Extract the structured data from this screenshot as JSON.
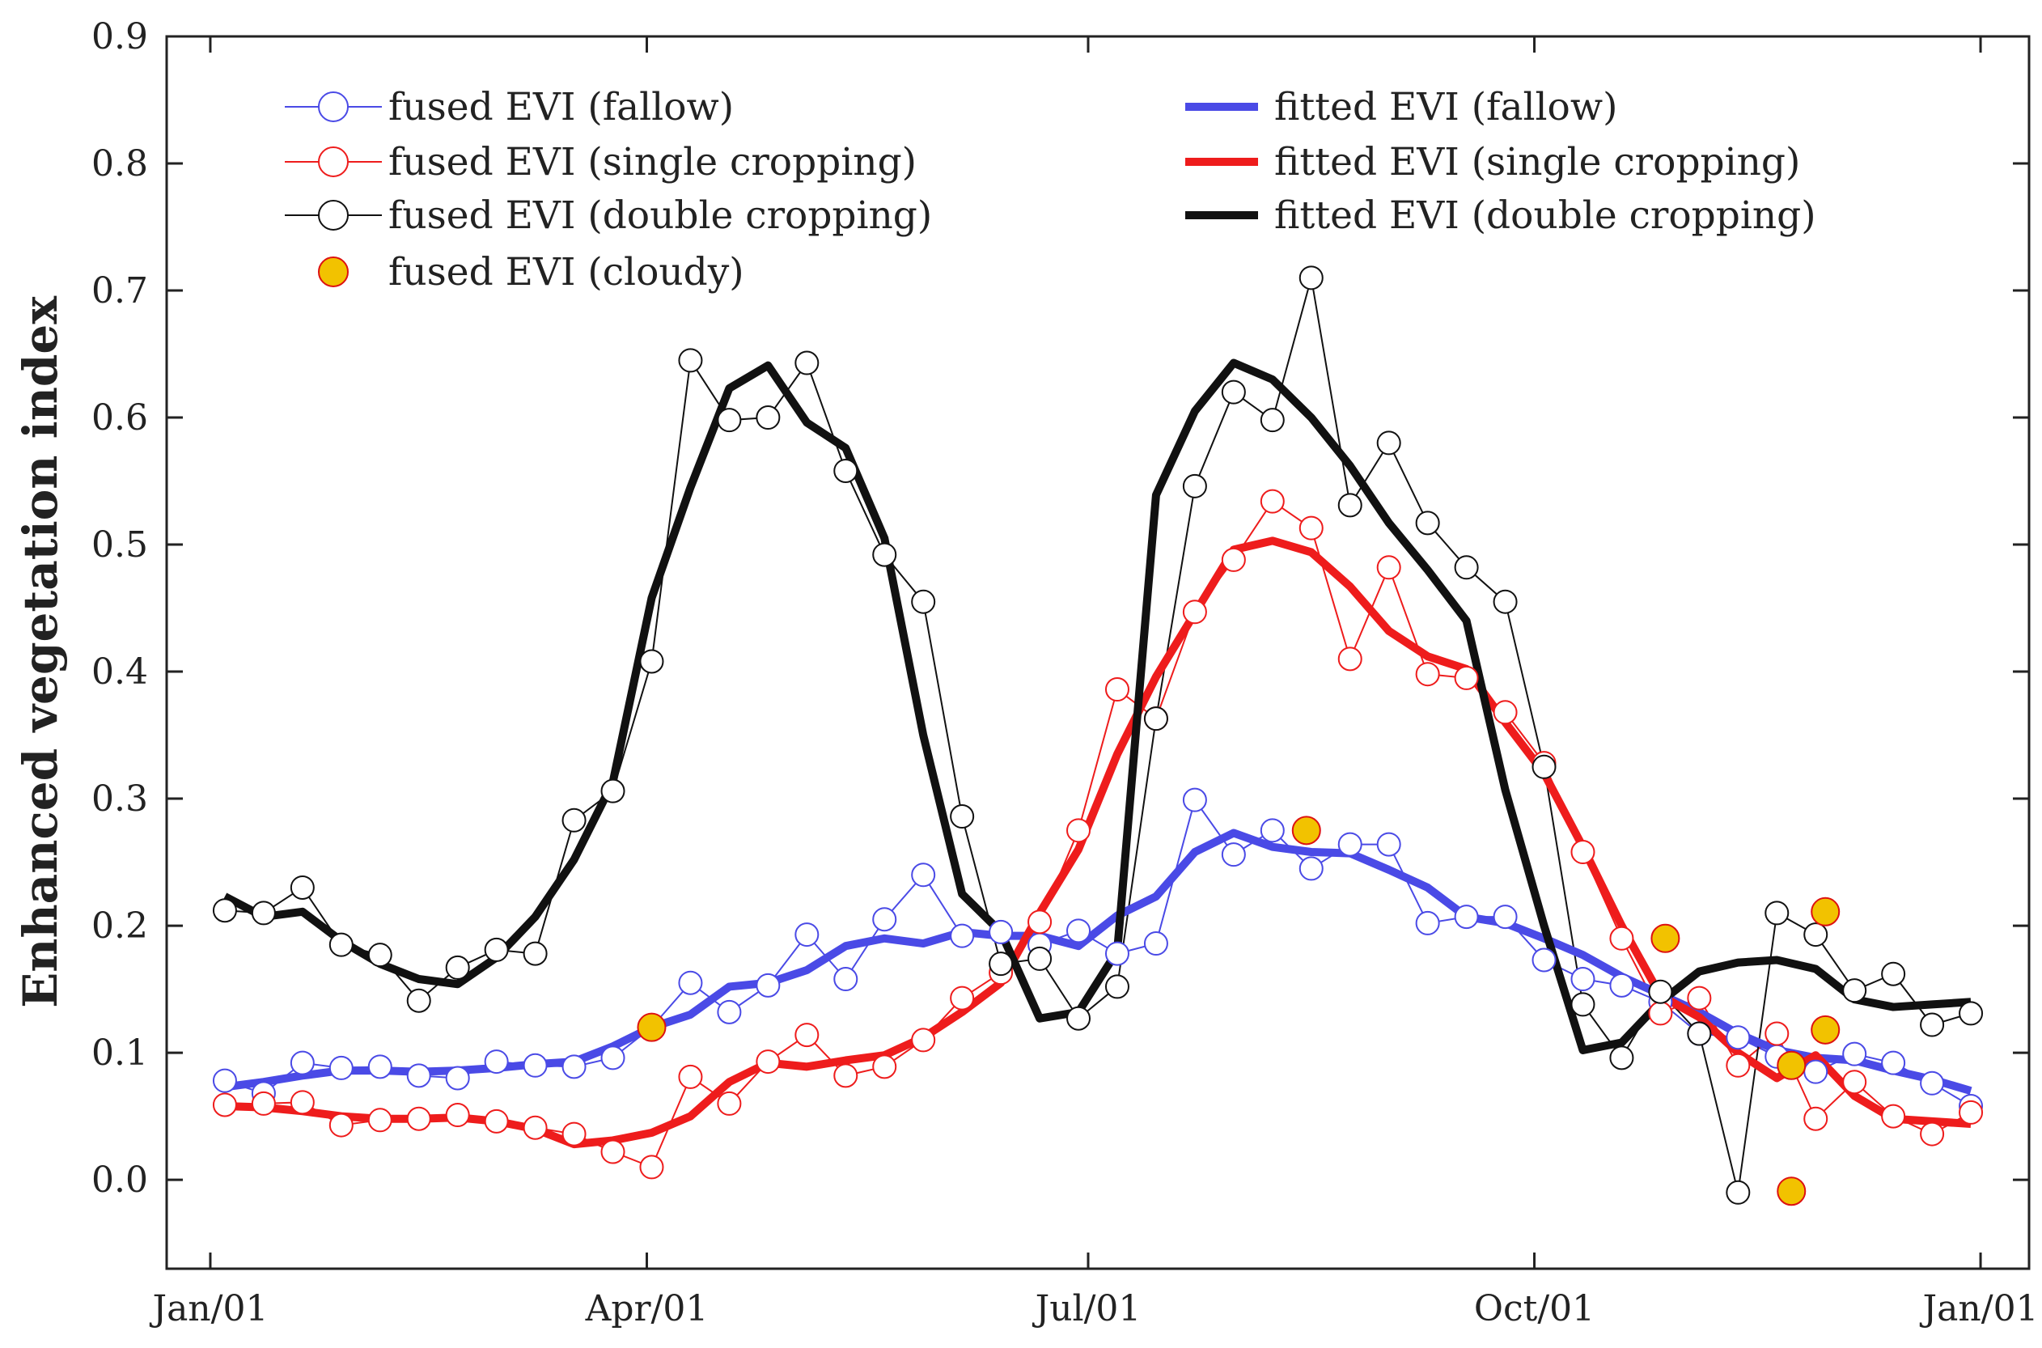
{
  "chart_data": {
    "type": "line",
    "title": "",
    "xlabel": "",
    "ylabel": "Enhanced vegetation index",
    "xlim": [
      -9,
      375
    ],
    "ylim": [
      -0.07,
      0.9
    ],
    "grid": false,
    "legend_placement": "top",
    "xticks": [
      {
        "day": 0,
        "label": "Jan/01"
      },
      {
        "day": 90,
        "label": "Apr/01"
      },
      {
        "day": 181,
        "label": "Jul/01"
      },
      {
        "day": 273,
        "label": "Oct/01"
      },
      {
        "day": 365,
        "label": "Jan/01"
      }
    ],
    "yticks": [
      {
        "value": 0.0,
        "label": "0.0"
      },
      {
        "value": 0.1,
        "label": "0.1"
      },
      {
        "value": 0.2,
        "label": "0.2"
      },
      {
        "value": 0.3,
        "label": "0.3"
      },
      {
        "value": 0.4,
        "label": "0.4"
      },
      {
        "value": 0.5,
        "label": "0.5"
      },
      {
        "value": 0.6,
        "label": "0.6"
      },
      {
        "value": 0.7,
        "label": "0.7"
      },
      {
        "value": 0.8,
        "label": "0.8"
      },
      {
        "value": 0.9,
        "label": "0.9"
      }
    ],
    "colors": {
      "fallow": "#4a4ae6",
      "single": "#ee1c1c",
      "double": "#111111",
      "cloudy_fill": "#f2c200",
      "cloudy_edge": "#dd1111"
    },
    "x": [
      3,
      11,
      19,
      27,
      35,
      43,
      51,
      59,
      67,
      75,
      83,
      91,
      99,
      107,
      115,
      123,
      131,
      139,
      147,
      155,
      163,
      171,
      179,
      187,
      195,
      203,
      211,
      219,
      227,
      235,
      243,
      251,
      259,
      267,
      275,
      283,
      291,
      299,
      307,
      315,
      323,
      331,
      339,
      347,
      355,
      363
    ],
    "series": [
      {
        "name": "fused EVI (fallow)",
        "kind": "observed",
        "color_key": "fallow",
        "values": [
          0.078,
          0.068,
          0.092,
          0.088,
          0.089,
          0.082,
          0.08,
          0.093,
          0.09,
          0.089,
          0.096,
          0.12,
          0.155,
          0.132,
          0.153,
          0.193,
          0.158,
          0.205,
          0.24,
          0.192,
          0.195,
          0.185,
          0.196,
          0.178,
          0.186,
          0.299,
          0.256,
          0.275,
          0.245,
          0.264,
          0.264,
          0.202,
          0.207,
          0.207,
          0.173,
          0.158,
          0.153,
          0.14,
          0.115,
          0.112,
          0.097,
          0.085,
          0.099,
          0.092,
          0.076,
          0.058
        ]
      },
      {
        "name": "fused EVI (single cropping)",
        "kind": "observed",
        "color_key": "single",
        "values": [
          0.059,
          0.06,
          0.061,
          0.043,
          0.047,
          0.048,
          0.051,
          0.046,
          0.041,
          0.036,
          0.022,
          0.01,
          0.081,
          0.06,
          0.093,
          0.114,
          0.082,
          0.089,
          0.11,
          0.143,
          0.163,
          0.203,
          0.275,
          0.386,
          0.363,
          0.447,
          0.488,
          0.534,
          0.513,
          0.41,
          0.482,
          0.398,
          0.395,
          0.368,
          0.328,
          0.258,
          0.19,
          0.131,
          0.143,
          0.09,
          0.115,
          0.048,
          0.077,
          0.05,
          0.036,
          0.053
        ]
      },
      {
        "name": "fused EVI (double cropping)",
        "kind": "observed",
        "color_key": "double",
        "values": [
          0.212,
          0.21,
          0.23,
          0.185,
          0.177,
          0.141,
          0.167,
          0.181,
          0.178,
          0.283,
          0.306,
          0.408,
          0.645,
          0.598,
          0.6,
          0.643,
          0.558,
          0.492,
          0.455,
          0.286,
          0.17,
          0.174,
          0.127,
          0.152,
          0.363,
          0.546,
          0.62,
          0.598,
          0.71,
          0.531,
          0.58,
          0.517,
          0.482,
          0.455,
          0.325,
          0.138,
          0.096,
          0.148,
          0.115,
          -0.01,
          0.21,
          0.193,
          0.149,
          0.162,
          0.122,
          0.131
        ]
      },
      {
        "name": "fused EVI (cloudy)",
        "kind": "cloudy",
        "points": [
          [
            91,
            0.12
          ],
          [
            226,
            0.275
          ],
          [
            300,
            0.19
          ],
          [
            326,
            0.09
          ],
          [
            326,
            -0.009
          ],
          [
            333,
            0.118
          ],
          [
            333,
            0.211
          ]
        ]
      },
      {
        "name": "fitted EVI (fallow)",
        "kind": "fitted",
        "color_key": "fallow",
        "values": [
          0.073,
          0.077,
          0.082,
          0.086,
          0.086,
          0.085,
          0.086,
          0.088,
          0.091,
          0.093,
          0.105,
          0.12,
          0.13,
          0.152,
          0.155,
          0.165,
          0.184,
          0.19,
          0.186,
          0.195,
          0.192,
          0.192,
          0.184,
          0.208,
          0.223,
          0.258,
          0.273,
          0.262,
          0.258,
          0.257,
          0.244,
          0.23,
          0.207,
          0.202,
          0.19,
          0.177,
          0.16,
          0.146,
          0.132,
          0.115,
          0.102,
          0.096,
          0.094,
          0.086,
          0.079,
          0.07
        ]
      },
      {
        "name": "fitted EVI (single cropping)",
        "kind": "fitted",
        "color_key": "single",
        "values": [
          0.058,
          0.057,
          0.054,
          0.05,
          0.048,
          0.048,
          0.049,
          0.046,
          0.04,
          0.028,
          0.031,
          0.037,
          0.05,
          0.077,
          0.092,
          0.089,
          0.094,
          0.098,
          0.112,
          0.132,
          0.155,
          0.21,
          0.26,
          0.335,
          0.396,
          0.446,
          0.496,
          0.503,
          0.494,
          0.467,
          0.432,
          0.412,
          0.402,
          0.36,
          0.32,
          0.262,
          0.2,
          0.145,
          0.128,
          0.1,
          0.08,
          0.098,
          0.066,
          0.048,
          0.046,
          0.044
        ]
      },
      {
        "name": "fitted EVI (double cropping)",
        "kind": "fitted",
        "color_key": "double",
        "values": [
          0.223,
          0.207,
          0.211,
          0.188,
          0.17,
          0.158,
          0.154,
          0.175,
          0.207,
          0.252,
          0.313,
          0.458,
          0.545,
          0.623,
          0.641,
          0.596,
          0.576,
          0.505,
          0.35,
          0.225,
          0.195,
          0.127,
          0.132,
          0.18,
          0.539,
          0.605,
          0.643,
          0.63,
          0.6,
          0.562,
          0.517,
          0.48,
          0.44,
          0.307,
          0.2,
          0.102,
          0.108,
          0.14,
          0.164,
          0.171,
          0.173,
          0.166,
          0.142,
          0.136,
          0.138,
          0.14
        ]
      }
    ]
  }
}
